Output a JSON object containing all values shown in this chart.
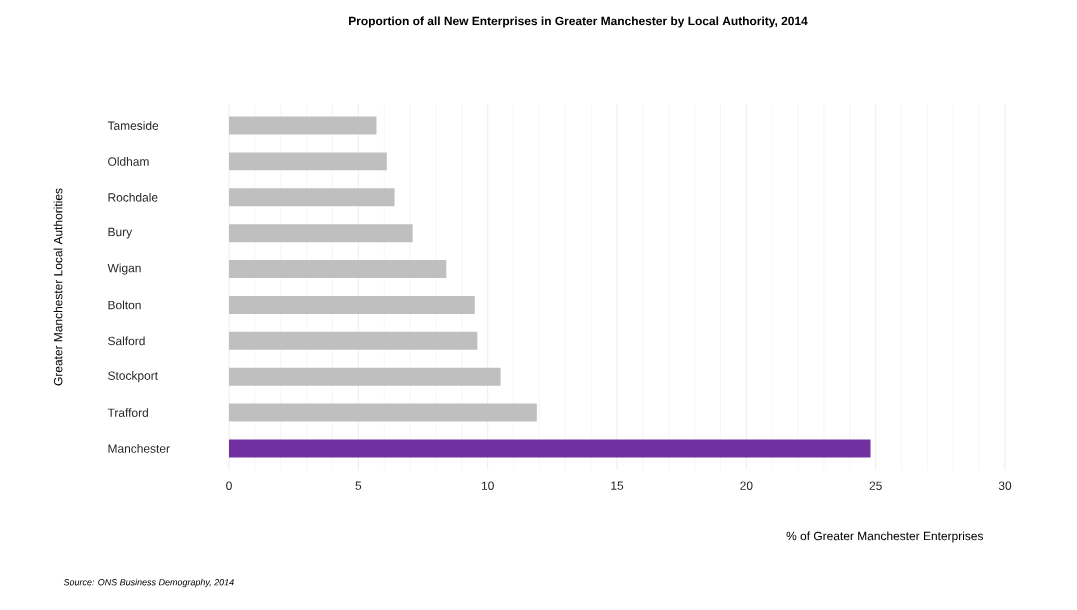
{
  "chart_data": {
    "type": "bar",
    "orientation": "horizontal",
    "title": "Proportion of all New Enterprises in Greater Manchester by Local Authority, 2014",
    "xlabel": "% of Greater Manchester Enterprises",
    "ylabel": "Greater Manchester Local Authorities",
    "annotations": [
      "Source: ONS Business Demography, 2014"
    ],
    "categories": [
      "Tameside",
      "Oldham",
      "Rochdale",
      "Bury",
      "Wigan",
      "Bolton",
      "Salford",
      "Stockport",
      "Trafford",
      "Manchester"
    ],
    "values": [
      5.7,
      6.1,
      6.4,
      7.1,
      8.4,
      9.5,
      9.6,
      10.5,
      11.9,
      24.8
    ],
    "colors": [
      "#bfbfbf",
      "#bfbfbf",
      "#bfbfbf",
      "#bfbfbf",
      "#bfbfbf",
      "#bfbfbf",
      "#bfbfbf",
      "#bfbfbf",
      "#bfbfbf",
      "#7030a0"
    ],
    "xlim": [
      0,
      30
    ],
    "xticks": [
      0,
      5,
      10,
      15,
      20,
      25,
      30
    ],
    "grid": "x"
  }
}
